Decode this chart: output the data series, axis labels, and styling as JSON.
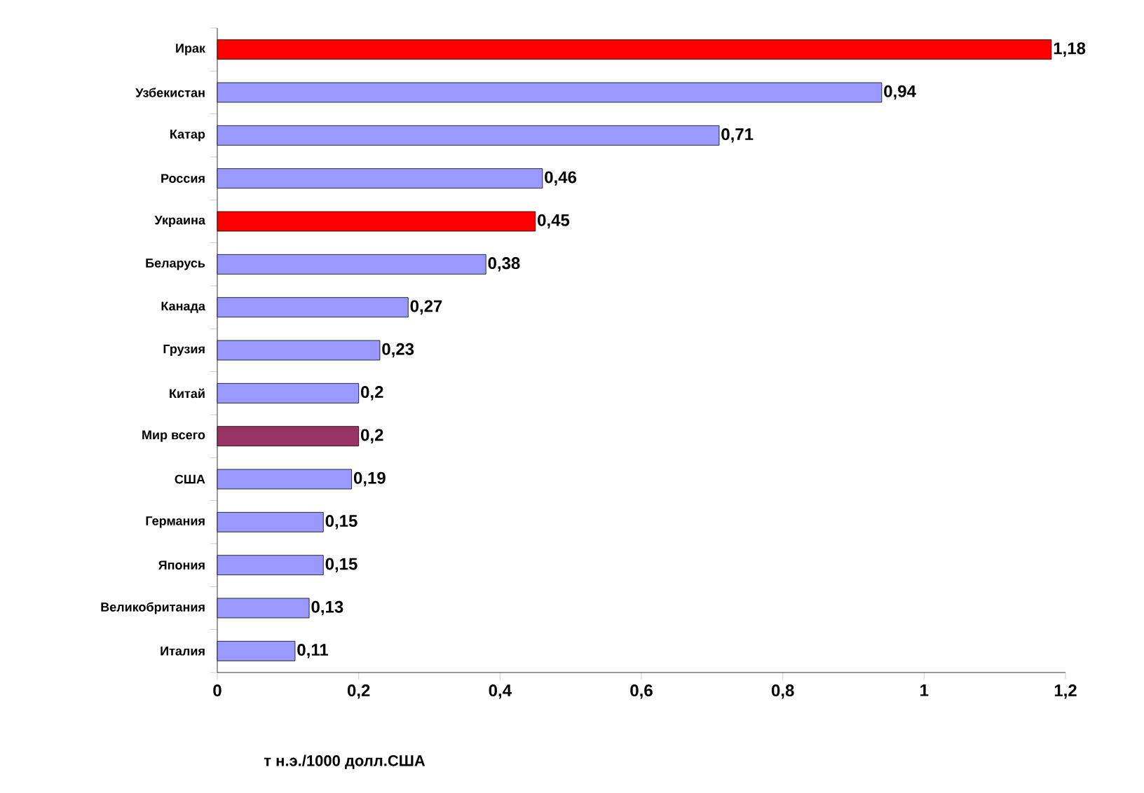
{
  "chart_data": {
    "type": "bar",
    "orientation": "horizontal",
    "categories": [
      "Ирак",
      "Узбекистан",
      "Катар",
      "Россия",
      "Украина",
      "Беларусь",
      "Канада",
      "Грузия",
      "Китай",
      "Мир всего",
      "США",
      "Германия",
      "Япония",
      "Великобритания",
      "Италия"
    ],
    "values": [
      1.18,
      0.94,
      0.71,
      0.46,
      0.45,
      0.38,
      0.27,
      0.23,
      0.2,
      0.2,
      0.19,
      0.15,
      0.15,
      0.13,
      0.11
    ],
    "colors": [
      "#ff0000",
      "#9999ff",
      "#9999ff",
      "#9999ff",
      "#ff0000",
      "#9999ff",
      "#9999ff",
      "#9999ff",
      "#9999ff",
      "#993366",
      "#9999ff",
      "#9999ff",
      "#9999ff",
      "#9999ff",
      "#9999ff"
    ],
    "value_labels": [
      "1,18",
      "0,94",
      "0,71",
      "0,46",
      "0,45",
      "0,38",
      "0,27",
      "0,23",
      "0,2",
      "0,2",
      "0,19",
      "0,15",
      "0,15",
      "0,13",
      "0,11"
    ],
    "xlim": [
      0,
      1.2
    ],
    "xticks": [
      {
        "value": 0,
        "label": "0"
      },
      {
        "value": 0.2,
        "label": "0,2"
      },
      {
        "value": 0.4,
        "label": "0,4"
      },
      {
        "value": 0.6,
        "label": "0,6"
      },
      {
        "value": 0.8,
        "label": "0,8"
      },
      {
        "value": 1,
        "label": "1"
      },
      {
        "value": 1.2,
        "label": "1,2"
      }
    ],
    "xlabel": "т н.э./1000 долл.США",
    "grid": false
  }
}
